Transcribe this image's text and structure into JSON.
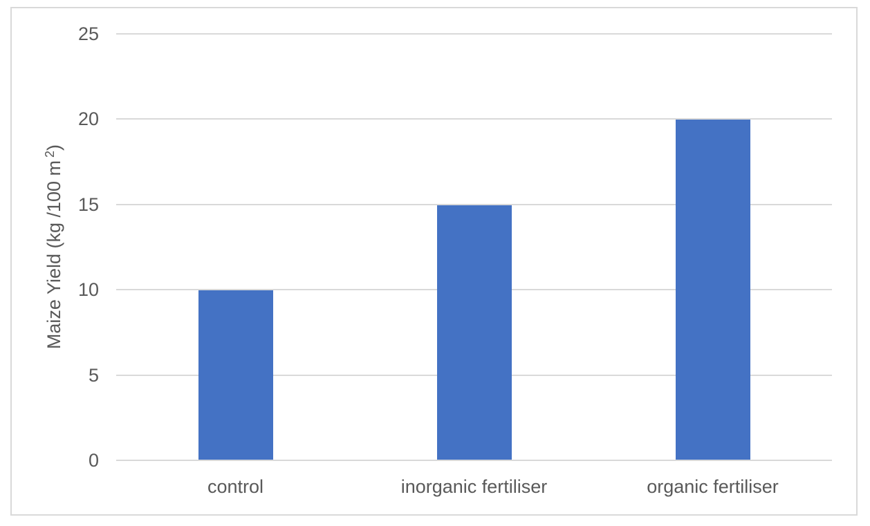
{
  "chart_data": {
    "type": "bar",
    "categories": [
      "control",
      "inorganic fertiliser",
      "organic fertiliser"
    ],
    "values": [
      10,
      15,
      20
    ],
    "title": "",
    "xlabel": "",
    "ylabel": "Maize Yield (kg /100 m 2)",
    "ylabel_parts": {
      "main": "Maize Yield (kg /100 m",
      "sup": "2",
      "close": ")"
    },
    "yticks": [
      0,
      5,
      10,
      15,
      20,
      25
    ],
    "ylim": [
      0,
      25
    ],
    "grid": true,
    "legend": "none",
    "bar_color": "#4472C4",
    "gridline_color": "#D9D9D9",
    "frame_color": "#D9D9D9",
    "text_color": "#595959"
  }
}
